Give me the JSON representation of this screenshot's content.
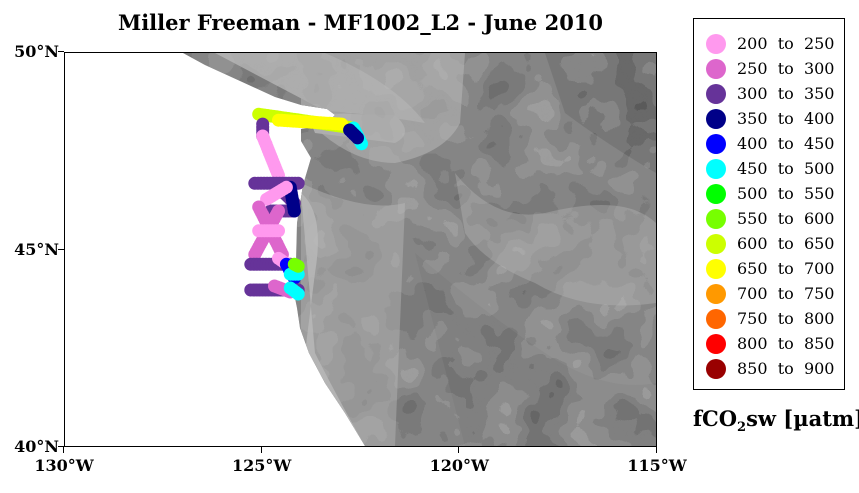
{
  "title": "Miller Freeman - MF1002_L2 - June 2010",
  "axes": {
    "y_ticks": [
      {
        "value": 50,
        "label": "50°N"
      },
      {
        "value": 45,
        "label": "45°N"
      },
      {
        "value": 40,
        "label": "40°N"
      }
    ],
    "x_ticks": [
      {
        "value": -130,
        "label": "130°W"
      },
      {
        "value": -125,
        "label": "125°W"
      },
      {
        "value": -120,
        "label": "120°W"
      },
      {
        "value": -115,
        "label": "115°W"
      }
    ],
    "lon_range": [
      -130,
      -115
    ],
    "lat_range": [
      40,
      50
    ]
  },
  "legend": {
    "items": [
      {
        "label": "200  to  250",
        "color": "#ff99ee"
      },
      {
        "label": "250  to  300",
        "color": "#dd66cc"
      },
      {
        "label": "300  to  350",
        "color": "#663399"
      },
      {
        "label": "350  to  400",
        "color": "#000088"
      },
      {
        "label": "400  to  450",
        "color": "#0000ff"
      },
      {
        "label": "450  to  500",
        "color": "#00ffff"
      },
      {
        "label": "500  to  550",
        "color": "#00ff00"
      },
      {
        "label": "550  to  600",
        "color": "#77ff00"
      },
      {
        "label": "600  to  650",
        "color": "#ccff00"
      },
      {
        "label": "650  to  700",
        "color": "#ffff00"
      },
      {
        "label": "700  to  750",
        "color": "#ff9900"
      },
      {
        "label": "750  to  800",
        "color": "#ff6600"
      },
      {
        "label": "800  to  850",
        "color": "#ff0000"
      },
      {
        "label": "850  to  900",
        "color": "#990000"
      }
    ],
    "units_prefix": "fCO",
    "units_sub": "2",
    "units_suffix": "sw [µatm]"
  },
  "track": [
    {
      "segment": [
        [
          -125.1,
          48.45
        ],
        [
          -122.7,
          48.1
        ]
      ],
      "color": "#ccff00"
    },
    {
      "segment": [
        [
          -124.6,
          48.3
        ],
        [
          -123.0,
          48.2
        ]
      ],
      "color": "#ffff00"
    },
    {
      "segment": [
        [
          -122.7,
          48.1
        ],
        [
          -122.5,
          47.7
        ]
      ],
      "color": "#00ffff"
    },
    {
      "segment": [
        [
          -122.8,
          48.05
        ],
        [
          -122.6,
          47.85
        ]
      ],
      "color": "#000088"
    },
    {
      "segment": [
        [
          -125.0,
          48.2
        ],
        [
          -125.0,
          47.9
        ]
      ],
      "color": "#663399"
    },
    {
      "segment": [
        [
          -125.0,
          47.9
        ],
        [
          -124.6,
          46.9
        ]
      ],
      "color": "#ff99ee"
    },
    {
      "segment": [
        [
          -125.2,
          46.7
        ],
        [
          -124.1,
          46.7
        ]
      ],
      "color": "#663399"
    },
    {
      "segment": [
        [
          -124.6,
          46.6
        ],
        [
          -124.2,
          46.2
        ]
      ],
      "color": "#663399"
    },
    {
      "segment": [
        [
          -124.8,
          46.0
        ],
        [
          -124.2,
          46.0
        ]
      ],
      "color": "#663399"
    },
    {
      "segment": [
        [
          -124.3,
          46.6
        ],
        [
          -124.2,
          46.0
        ]
      ],
      "color": "#000088"
    },
    {
      "segment": [
        [
          -124.9,
          46.3
        ],
        [
          -124.4,
          46.6
        ]
      ],
      "color": "#ff99ee"
    },
    {
      "segment": [
        [
          -125.1,
          46.1
        ],
        [
          -124.5,
          44.9
        ]
      ],
      "color": "#dd66cc"
    },
    {
      "segment": [
        [
          -124.6,
          46.0
        ],
        [
          -125.2,
          44.9
        ]
      ],
      "color": "#dd66cc"
    },
    {
      "segment": [
        [
          -125.1,
          45.5
        ],
        [
          -124.6,
          45.5
        ]
      ],
      "color": "#ff99ee"
    },
    {
      "segment": [
        [
          -125.3,
          44.65
        ],
        [
          -124.3,
          44.65
        ]
      ],
      "color": "#663399"
    },
    {
      "segment": [
        [
          -124.6,
          44.8
        ],
        [
          -124.3,
          44.6
        ]
      ],
      "color": "#ff99ee"
    },
    {
      "segment": [
        [
          -124.4,
          44.65
        ],
        [
          -124.2,
          44.3
        ]
      ],
      "color": "#0000ff"
    },
    {
      "segment": [
        [
          -124.3,
          44.4
        ],
        [
          -124.1,
          44.4
        ]
      ],
      "color": "#00ffff"
    },
    {
      "segment": [
        [
          -124.2,
          44.65
        ],
        [
          -124.1,
          44.6
        ]
      ],
      "color": "#77ff00"
    },
    {
      "segment": [
        [
          -125.3,
          44.0
        ],
        [
          -124.1,
          44.0
        ]
      ],
      "color": "#663399"
    },
    {
      "segment": [
        [
          -124.7,
          44.1
        ],
        [
          -124.3,
          43.95
        ]
      ],
      "color": "#dd66cc"
    },
    {
      "segment": [
        [
          -124.3,
          44.05
        ],
        [
          -124.1,
          43.9
        ]
      ],
      "color": "#00ffff"
    }
  ]
}
